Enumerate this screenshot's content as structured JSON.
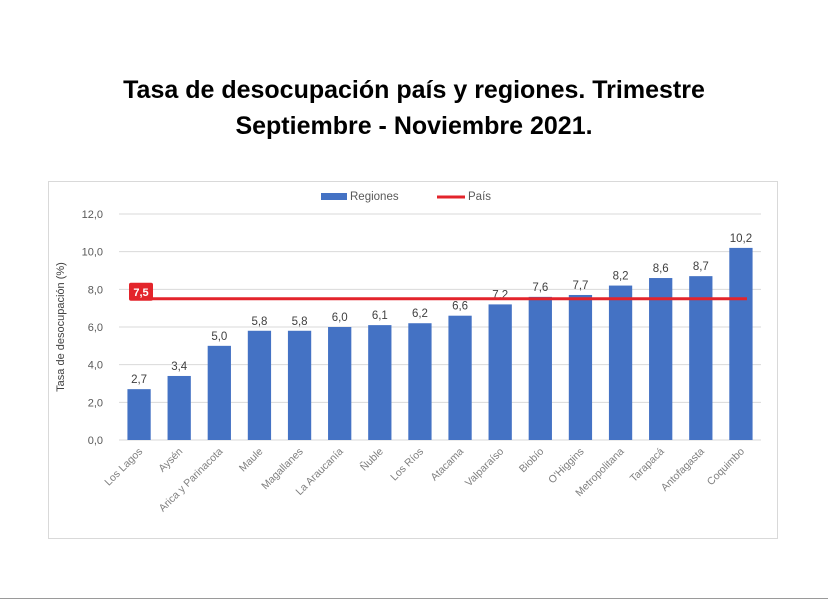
{
  "title_lines": [
    "Tasa de desocupación país y regiones. Trimestre",
    "Septiembre - Noviembre 2021."
  ],
  "chart_data": {
    "type": "bar",
    "categories": [
      "Los Lagos",
      "Aysén",
      "Arica y Parinacota",
      "Maule",
      "Magallanes",
      "La Araucanía",
      "Ñuble",
      "Los Ríos",
      "Atacama",
      "Valparaíso",
      "Biobío",
      "O'Higgins",
      "Metropolitana",
      "Tarapacá",
      "Antofagasta",
      "Coquimbo"
    ],
    "series": [
      {
        "name": "Regiones",
        "values": [
          2.7,
          3.4,
          5.0,
          5.8,
          5.8,
          6.0,
          6.1,
          6.2,
          6.6,
          7.2,
          7.6,
          7.7,
          8.2,
          8.6,
          8.7,
          10.2
        ],
        "labels": [
          "2,7",
          "3,4",
          "5,0",
          "5,8",
          "5,8",
          "6,0",
          "6,1",
          "6,2",
          "6,6",
          "7,2",
          "7,6",
          "7,7",
          "8,2",
          "8,6",
          "8,7",
          "10,2"
        ],
        "color": "#4472c4"
      }
    ],
    "reference_line": {
      "name": "País",
      "value": 7.5,
      "label": "7,5",
      "color": "#e3242b"
    },
    "ylabel": "Tasa de desocupación (%)",
    "xlabel": "",
    "ylim": [
      0,
      12
    ],
    "yticks": [
      0,
      2,
      4,
      6,
      8,
      10,
      12
    ],
    "ytick_labels": [
      "0,0",
      "2,0",
      "4,0",
      "6,0",
      "8,0",
      "10,0",
      "12,0"
    ],
    "grid": true,
    "legend_position": "top-center",
    "gridline_color": "#d9d9d9",
    "tick_label_color": "#595959"
  }
}
